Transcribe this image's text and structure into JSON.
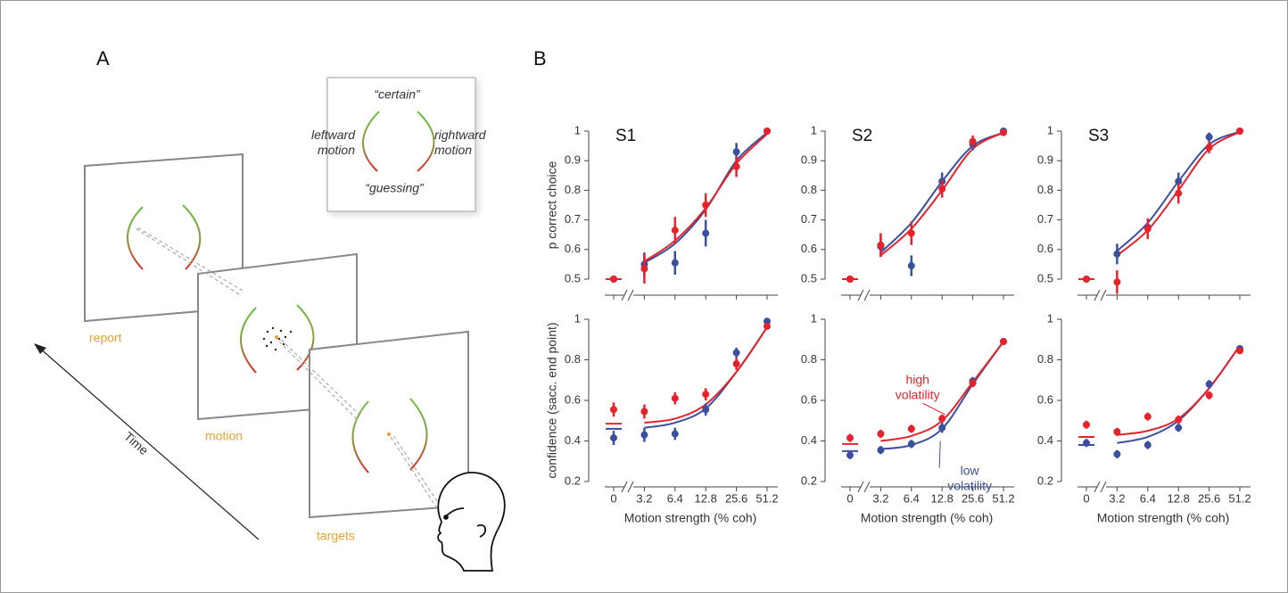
{
  "panel_a": {
    "label": "A",
    "inset": {
      "top": "“certain”",
      "bottom": "“guessing”",
      "left": "leftward motion",
      "right": "rightward motion"
    },
    "screens": [
      "report",
      "motion",
      "targets"
    ],
    "axis": "Time"
  },
  "panel_b": {
    "label": "B"
  },
  "chart_data": [
    {
      "type": "line",
      "title": "S1",
      "ylabel": "p correct choice",
      "ylim": [
        0.5,
        1
      ],
      "yticks": [
        0.5,
        0.6,
        0.7,
        0.8,
        0.9,
        1
      ],
      "series": [
        {
          "color": "#3a4fa0",
          "values": [
            0.5,
            0.55,
            0.555,
            0.655,
            0.93,
            1.0
          ],
          "errors": [
            0.01,
            0.04,
            0.04,
            0.045,
            0.03,
            0.01
          ],
          "fit": [
            0.5,
            0.555,
            0.62,
            0.735,
            0.9,
            0.995
          ]
        },
        {
          "color": "#e8222b",
          "values": [
            0.5,
            0.535,
            0.665,
            0.75,
            0.88,
            1.0
          ],
          "errors": [
            0.01,
            0.05,
            0.045,
            0.04,
            0.035,
            0.01
          ],
          "fit": [
            0.5,
            0.56,
            0.63,
            0.74,
            0.89,
            0.99
          ]
        }
      ]
    },
    {
      "type": "line",
      "title": "S2",
      "ylim": [
        0.5,
        1
      ],
      "yticks": [
        0.5,
        0.6,
        0.7,
        0.8,
        0.9,
        1
      ],
      "series": [
        {
          "color": "#3a4fa0",
          "values": [
            0.5,
            0.61,
            0.545,
            0.83,
            0.955,
            1.0
          ],
          "errors": [
            0.01,
            0.035,
            0.035,
            0.03,
            0.02,
            0.01
          ],
          "fit": [
            0.5,
            0.59,
            0.69,
            0.83,
            0.95,
            0.995
          ]
        },
        {
          "color": "#e8222b",
          "values": [
            0.5,
            0.615,
            0.655,
            0.805,
            0.965,
            0.995
          ],
          "errors": [
            0.01,
            0.04,
            0.04,
            0.03,
            0.02,
            0.01
          ],
          "fit": [
            0.5,
            0.58,
            0.67,
            0.8,
            0.94,
            0.995
          ]
        }
      ]
    },
    {
      "type": "line",
      "title": "S3",
      "ylim": [
        0.5,
        1
      ],
      "yticks": [
        0.5,
        0.6,
        0.7,
        0.8,
        0.9,
        1
      ],
      "series": [
        {
          "color": "#3a4fa0",
          "values": [
            0.5,
            0.585,
            0.675,
            0.83,
            0.98,
            1.0
          ],
          "errors": [
            0.01,
            0.035,
            0.03,
            0.03,
            0.015,
            0.005
          ],
          "fit": [
            0.5,
            0.595,
            0.69,
            0.83,
            0.955,
            0.998
          ]
        },
        {
          "color": "#e8222b",
          "values": [
            0.5,
            0.49,
            0.67,
            0.79,
            0.945,
            1.0
          ],
          "errors": [
            0.01,
            0.04,
            0.035,
            0.035,
            0.02,
            0.005
          ],
          "fit": [
            0.5,
            0.58,
            0.665,
            0.8,
            0.94,
            0.997
          ]
        }
      ]
    },
    {
      "type": "line",
      "ylabel": "confidence (sacc. end point)",
      "xlabel": "Motion strength (% coh)",
      "categories": [
        "0",
        "3.2",
        "6.4",
        "12.8",
        "25.6",
        "51.2"
      ],
      "ylim": [
        0.2,
        1
      ],
      "yticks": [
        0.2,
        0.4,
        0.6,
        0.8,
        1
      ],
      "series": [
        {
          "color": "#3a4fa0",
          "values": [
            0.415,
            0.43,
            0.435,
            0.555,
            0.835,
            0.99
          ],
          "errors": [
            0.035,
            0.035,
            0.03,
            0.03,
            0.025,
            0.01
          ],
          "fit": [
            0.46,
            0.465,
            0.49,
            0.56,
            0.74,
            0.96
          ]
        },
        {
          "color": "#e8222b",
          "values": [
            0.555,
            0.545,
            0.61,
            0.63,
            0.78,
            0.965
          ],
          "errors": [
            0.035,
            0.035,
            0.03,
            0.03,
            0.03,
            0.01
          ],
          "fit": [
            0.485,
            0.49,
            0.51,
            0.58,
            0.74,
            0.96
          ]
        }
      ]
    },
    {
      "type": "line",
      "xlabel": "Motion strength (% coh)",
      "categories": [
        "0",
        "3.2",
        "6.4",
        "12.8",
        "25.6",
        "51.2"
      ],
      "ylim": [
        0.2,
        1
      ],
      "yticks": [
        0.2,
        0.4,
        0.6,
        0.8,
        1
      ],
      "series": [
        {
          "name": "low volatility",
          "color": "#3a4fa0",
          "values": [
            0.33,
            0.355,
            0.385,
            0.465,
            0.695,
            0.89
          ],
          "errors": [
            0.02,
            0.02,
            0.02,
            0.025,
            0.02,
            0.01
          ],
          "fit": [
            0.35,
            0.36,
            0.38,
            0.46,
            0.68,
            0.89
          ]
        },
        {
          "name": "high volatility",
          "color": "#e8222b",
          "values": [
            0.415,
            0.435,
            0.46,
            0.51,
            0.685,
            0.89
          ],
          "errors": [
            0.02,
            0.02,
            0.02,
            0.02,
            0.02,
            0.01
          ],
          "fit": [
            0.385,
            0.4,
            0.425,
            0.5,
            0.69,
            0.89
          ]
        }
      ]
    },
    {
      "type": "line",
      "xlabel": "Motion strength (% coh)",
      "categories": [
        "0",
        "3.2",
        "6.4",
        "12.8",
        "25.6",
        "51.2"
      ],
      "ylim": [
        0.2,
        1
      ],
      "yticks": [
        0.2,
        0.4,
        0.6,
        0.8,
        1
      ],
      "series": [
        {
          "color": "#3a4fa0",
          "values": [
            0.39,
            0.335,
            0.38,
            0.465,
            0.68,
            0.855
          ],
          "errors": [
            0.02,
            0.02,
            0.02,
            0.02,
            0.02,
            0.01
          ],
          "fit": [
            0.38,
            0.39,
            0.42,
            0.5,
            0.66,
            0.87
          ]
        },
        {
          "color": "#e8222b",
          "values": [
            0.48,
            0.445,
            0.52,
            0.505,
            0.625,
            0.845
          ],
          "errors": [
            0.02,
            0.02,
            0.02,
            0.02,
            0.02,
            0.01
          ],
          "fit": [
            0.42,
            0.43,
            0.45,
            0.51,
            0.66,
            0.87
          ]
        }
      ]
    }
  ]
}
